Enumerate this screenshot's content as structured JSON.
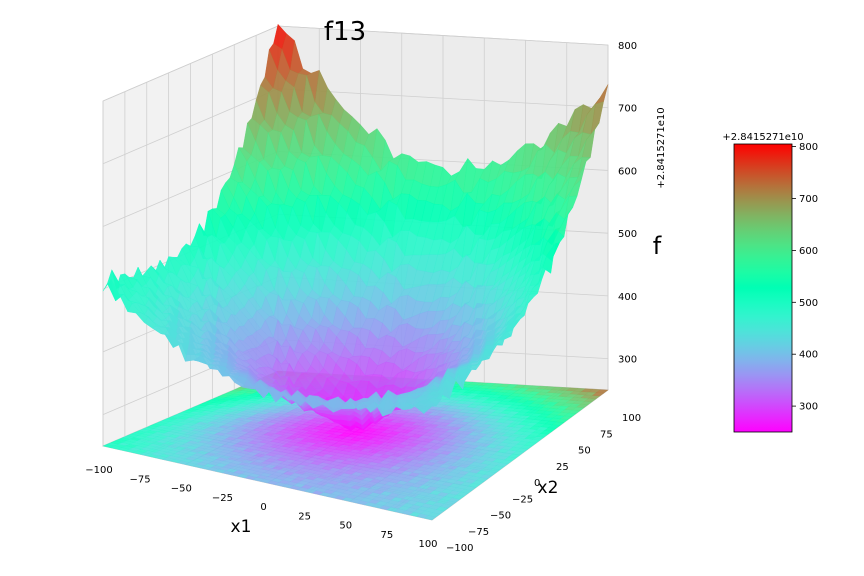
{
  "chart_data": {
    "type": "surface",
    "title": "f13",
    "xlabel": "x1",
    "ylabel": "x2",
    "zlabel": "f",
    "colormap": "rainbow",
    "xlim": [
      -100,
      100
    ],
    "ylim": [
      -100,
      100
    ],
    "zlim": [
      250,
      800
    ],
    "z_offset": "+2.8415271e10",
    "x_ticks": [
      -100,
      -75,
      -50,
      -25,
      0,
      25,
      50,
      75,
      100
    ],
    "y_ticks": [
      -100,
      -75,
      -50,
      -25,
      0,
      25,
      50,
      75,
      100
    ],
    "z_ticks": [
      300,
      400,
      500,
      600,
      700,
      800
    ],
    "surface_z_min": 255,
    "surface_z_max": 805,
    "corner_values": {
      "x-100_y-100": 510,
      "x100_y-100": 430,
      "x-100_y100": 805,
      "x100_y100": 735
    },
    "minimum_near": {
      "x": 0,
      "y": 0,
      "z": 255
    },
    "floor_contour": true,
    "grid": true,
    "colorbar": {
      "offset_label": "+2.8415271e10",
      "ticks": [
        300,
        400,
        500,
        600,
        700,
        800
      ],
      "min": 250,
      "max": 805,
      "placement": "right"
    }
  }
}
